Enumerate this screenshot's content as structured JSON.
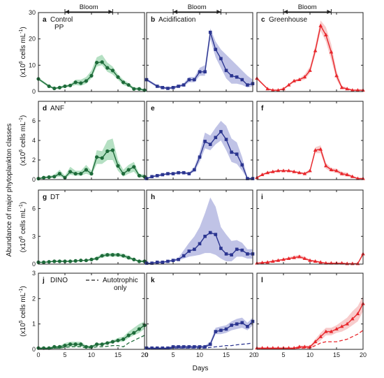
{
  "figure": {
    "shared_ylabel": "Abundance of major phytoplankton classes",
    "xlabel": "Days",
    "bloom_label": "Bloom",
    "autotrophic_label_line1": "Autotrophic",
    "autotrophic_label_line2": "only"
  },
  "colors": {
    "control": "#1e6b3a",
    "control_band": "#a8dbb8",
    "acid": "#2b3590",
    "acid_band": "#b5b8e2",
    "green": "#e8262b",
    "green_band": "#f7c3c3"
  },
  "chart_data": [
    {
      "letter": "a",
      "row": 0,
      "col": 0,
      "treatment": "control",
      "type": "line",
      "label": [
        "Control",
        "PP"
      ],
      "yunit_prefix": "(x10",
      "yunit_exp": "6",
      "yunit_suffix": " cells mL",
      "ylim": [
        0,
        30
      ],
      "yticks": [
        "0",
        "10",
        "20",
        "30"
      ],
      "x": [
        0,
        2,
        3,
        4,
        5,
        6,
        7,
        8,
        9,
        10,
        11,
        12,
        13,
        14,
        15,
        16,
        17,
        18,
        19,
        20
      ],
      "y": [
        4.8,
        2.0,
        1.2,
        1.5,
        2.0,
        2.3,
        3.5,
        3.2,
        4.0,
        6.0,
        11.0,
        11.2,
        9.0,
        8.0,
        5.5,
        3.5,
        2.5,
        1.0,
        1.0,
        0.5
      ],
      "lo": [
        4.3,
        1.5,
        0.9,
        1.1,
        1.5,
        1.8,
        2.5,
        2.2,
        3.0,
        5.0,
        9.5,
        10.0,
        7.5,
        6.5,
        4.5,
        2.5,
        1.8,
        0.6,
        0.5,
        0.2
      ],
      "hi": [
        5.3,
        2.5,
        1.5,
        1.9,
        2.5,
        2.8,
        4.5,
        4.5,
        5.5,
        8.0,
        13.0,
        14.0,
        11.0,
        9.5,
        6.5,
        4.5,
        3.2,
        1.5,
        1.5,
        0.8
      ],
      "marker": "circle"
    },
    {
      "letter": "b",
      "row": 0,
      "col": 1,
      "treatment": "acid",
      "type": "line",
      "label": [
        "Acidification"
      ],
      "ylim": [
        0,
        30
      ],
      "yticks": [
        "0",
        "10",
        "20",
        "30"
      ],
      "x": [
        0,
        2,
        3,
        4,
        5,
        6,
        7,
        8,
        9,
        10,
        11,
        12,
        13,
        14,
        15,
        16,
        17,
        18,
        19,
        20
      ],
      "y": [
        4.5,
        2.0,
        1.5,
        1.2,
        1.5,
        2.0,
        2.5,
        4.5,
        4.5,
        7.5,
        7.5,
        22.5,
        16.0,
        12.5,
        8.0,
        6.0,
        5.5,
        4.5,
        2.5,
        3.0
      ],
      "lo": [
        4.0,
        1.5,
        1.0,
        0.8,
        1.0,
        1.5,
        2.0,
        3.5,
        3.5,
        6.0,
        6.0,
        20.0,
        13.0,
        9.0,
        5.0,
        3.0,
        3.0,
        2.5,
        1.5,
        2.0
      ],
      "hi": [
        5.0,
        2.5,
        2.0,
        1.7,
        2.0,
        2.5,
        3.2,
        5.5,
        5.5,
        9.0,
        10.0,
        24.0,
        19.0,
        16.0,
        14.0,
        12.0,
        10.0,
        8.0,
        6.0,
        4.5
      ],
      "marker": "square"
    },
    {
      "letter": "c",
      "row": 0,
      "col": 2,
      "treatment": "green",
      "type": "line",
      "label": [
        "Greenhouse"
      ],
      "ylim": [
        0,
        30
      ],
      "yticks": [
        "0",
        "10",
        "20",
        "30"
      ],
      "x": [
        0,
        2,
        3,
        4,
        5,
        6,
        7,
        8,
        9,
        10,
        11,
        12,
        13,
        14,
        15,
        16,
        17,
        18,
        19,
        20
      ],
      "y": [
        5.0,
        1.0,
        0.5,
        0.5,
        1.0,
        2.5,
        4.0,
        4.5,
        5.5,
        8.0,
        15.5,
        25.0,
        21.5,
        15.0,
        6.0,
        1.5,
        1.0,
        0.5,
        0.5,
        0.5
      ],
      "lo": [
        4.5,
        0.7,
        0.3,
        0.3,
        0.7,
        2.0,
        3.5,
        4.0,
        4.5,
        7.0,
        14.0,
        23.0,
        19.0,
        12.0,
        4.5,
        1.0,
        0.6,
        0.3,
        0.3,
        0.3
      ],
      "hi": [
        5.5,
        1.3,
        0.8,
        0.8,
        1.3,
        3.0,
        4.5,
        5.0,
        6.5,
        9.5,
        17.5,
        27.0,
        24.5,
        18.0,
        8.0,
        2.2,
        1.5,
        0.8,
        0.8,
        0.8
      ],
      "marker": "triangle"
    },
    {
      "letter": "d",
      "row": 1,
      "col": 0,
      "treatment": "control",
      "type": "line",
      "label": [
        "ANF"
      ],
      "ylim": [
        0,
        8
      ],
      "yticks": [
        "0",
        "2",
        "4",
        "6"
      ],
      "x": [
        0,
        1,
        2,
        3,
        4,
        5,
        6,
        7,
        8,
        9,
        10,
        11,
        12,
        13,
        14,
        15,
        16,
        17,
        18,
        19,
        20
      ],
      "y": [
        0.1,
        0.2,
        0.25,
        0.3,
        0.6,
        0.2,
        0.8,
        0.6,
        0.6,
        1.0,
        0.6,
        2.3,
        2.2,
        2.9,
        3.0,
        1.4,
        0.6,
        1.0,
        1.3,
        0.4,
        0.3
      ],
      "lo": [
        0.05,
        0.1,
        0.15,
        0.2,
        0.3,
        0.1,
        0.5,
        0.4,
        0.4,
        0.6,
        0.4,
        1.6,
        1.6,
        2.0,
        2.0,
        0.9,
        0.3,
        0.6,
        0.8,
        0.2,
        0.2
      ],
      "hi": [
        0.15,
        0.3,
        0.35,
        0.5,
        1.0,
        0.4,
        1.3,
        0.9,
        0.9,
        1.5,
        0.9,
        3.0,
        2.9,
        4.0,
        4.2,
        2.0,
        1.0,
        1.5,
        1.8,
        0.6,
        0.5
      ],
      "marker": "circle"
    },
    {
      "letter": "e",
      "row": 1,
      "col": 1,
      "treatment": "acid",
      "type": "line",
      "label": [],
      "ylim": [
        0,
        8
      ],
      "yticks": [
        "0",
        "2",
        "4",
        "6"
      ],
      "x": [
        0,
        1,
        2,
        3,
        4,
        5,
        6,
        7,
        8,
        9,
        10,
        11,
        12,
        13,
        14,
        15,
        16,
        17,
        18,
        19,
        20
      ],
      "y": [
        0.1,
        0.3,
        0.4,
        0.5,
        0.6,
        0.6,
        0.7,
        0.7,
        0.6,
        1.0,
        2.3,
        3.9,
        3.6,
        4.3,
        4.9,
        4.1,
        2.8,
        2.6,
        1.5,
        0.1,
        0.1
      ],
      "lo": [
        0.05,
        0.2,
        0.3,
        0.4,
        0.5,
        0.5,
        0.6,
        0.6,
        0.5,
        0.8,
        1.8,
        3.2,
        3.0,
        3.6,
        4.0,
        3.0,
        1.8,
        1.6,
        0.9,
        0.05,
        0.05
      ],
      "hi": [
        0.15,
        0.4,
        0.5,
        0.6,
        0.7,
        0.7,
        0.8,
        0.8,
        0.7,
        1.3,
        2.8,
        4.8,
        4.5,
        5.3,
        6.0,
        5.5,
        4.2,
        3.8,
        2.3,
        0.2,
        0.2
      ],
      "marker": "square"
    },
    {
      "letter": "f",
      "row": 1,
      "col": 2,
      "treatment": "green",
      "type": "line",
      "label": [],
      "ylim": [
        0,
        8
      ],
      "yticks": [
        "0",
        "2",
        "4",
        "6"
      ],
      "x": [
        0,
        1,
        2,
        3,
        4,
        5,
        6,
        7,
        8,
        9,
        10,
        11,
        12,
        13,
        14,
        15,
        16,
        17,
        18,
        19,
        20
      ],
      "y": [
        0.2,
        0.5,
        0.7,
        0.8,
        0.9,
        0.9,
        0.9,
        0.8,
        0.7,
        0.6,
        0.9,
        3.0,
        3.1,
        1.4,
        1.0,
        0.9,
        0.6,
        0.5,
        0.3,
        0.1,
        0.1
      ],
      "lo": [
        0.1,
        0.4,
        0.6,
        0.7,
        0.8,
        0.8,
        0.8,
        0.7,
        0.6,
        0.5,
        0.7,
        2.7,
        2.7,
        1.1,
        0.8,
        0.7,
        0.4,
        0.3,
        0.2,
        0.05,
        0.05
      ],
      "hi": [
        0.3,
        0.6,
        0.8,
        0.9,
        1.0,
        1.0,
        1.0,
        0.9,
        0.8,
        0.7,
        1.1,
        3.3,
        3.5,
        1.7,
        1.2,
        1.1,
        0.8,
        0.7,
        0.4,
        0.2,
        0.2
      ],
      "marker": "triangle"
    },
    {
      "letter": "g",
      "row": 2,
      "col": 0,
      "treatment": "control",
      "type": "line",
      "label": [
        "DT"
      ],
      "ylim": [
        0,
        8
      ],
      "yticks": [
        "0",
        "3",
        "6"
      ],
      "x": [
        0,
        1,
        2,
        3,
        4,
        5,
        6,
        7,
        8,
        9,
        10,
        11,
        12,
        13,
        14,
        15,
        16,
        17,
        18,
        19,
        20
      ],
      "y": [
        0.2,
        0.2,
        0.25,
        0.3,
        0.3,
        0.3,
        0.3,
        0.35,
        0.4,
        0.4,
        0.5,
        0.6,
        0.9,
        1.0,
        1.0,
        1.0,
        0.9,
        0.7,
        0.5,
        0.3,
        0.3
      ],
      "lo": [
        0.15,
        0.15,
        0.2,
        0.25,
        0.25,
        0.25,
        0.25,
        0.3,
        0.35,
        0.35,
        0.4,
        0.5,
        0.7,
        0.8,
        0.8,
        0.8,
        0.7,
        0.5,
        0.4,
        0.2,
        0.2
      ],
      "hi": [
        0.25,
        0.25,
        0.3,
        0.35,
        0.35,
        0.35,
        0.35,
        0.4,
        0.45,
        0.45,
        0.6,
        0.8,
        1.1,
        1.2,
        1.2,
        1.2,
        1.1,
        0.9,
        0.6,
        0.4,
        0.4
      ],
      "marker": "circle"
    },
    {
      "letter": "h",
      "row": 2,
      "col": 1,
      "treatment": "acid",
      "type": "line",
      "label": [],
      "ylim": [
        0,
        8
      ],
      "yticks": [
        "0",
        "3",
        "6"
      ],
      "x": [
        0,
        1,
        2,
        3,
        4,
        5,
        6,
        7,
        8,
        9,
        10,
        11,
        12,
        13,
        14,
        15,
        16,
        17,
        18,
        19,
        20
      ],
      "y": [
        0.1,
        0.1,
        0.2,
        0.2,
        0.3,
        0.4,
        0.5,
        0.9,
        1.4,
        1.6,
        2.2,
        3.0,
        3.4,
        3.2,
        1.7,
        1.1,
        1.0,
        1.6,
        1.5,
        1.1,
        1.1
      ],
      "lo": [
        0.05,
        0.05,
        0.1,
        0.1,
        0.2,
        0.3,
        0.4,
        0.6,
        0.8,
        0.9,
        1.0,
        1.2,
        1.2,
        1.0,
        0.6,
        0.3,
        0.3,
        0.8,
        0.8,
        0.6,
        0.6
      ],
      "hi": [
        0.15,
        0.15,
        0.3,
        0.3,
        0.4,
        0.5,
        0.7,
        1.5,
        2.3,
        3.0,
        4.0,
        5.5,
        7.2,
        6.2,
        4.0,
        3.2,
        2.5,
        2.6,
        2.3,
        1.6,
        1.6
      ],
      "marker": "square"
    },
    {
      "letter": "i",
      "row": 2,
      "col": 2,
      "treatment": "green",
      "type": "line",
      "label": [],
      "ylim": [
        0,
        8
      ],
      "yticks": [
        "0",
        "3",
        "6"
      ],
      "x": [
        0,
        1,
        2,
        3,
        4,
        5,
        6,
        7,
        8,
        9,
        10,
        11,
        12,
        13,
        14,
        15,
        16,
        17,
        18,
        19,
        20
      ],
      "y": [
        0.1,
        0.15,
        0.2,
        0.3,
        0.4,
        0.5,
        0.6,
        0.7,
        0.8,
        0.6,
        0.4,
        0.3,
        0.2,
        0.1,
        0.1,
        0.1,
        0.1,
        0.05,
        0.05,
        0.05,
        1.1
      ],
      "lo": [
        0.05,
        0.1,
        0.15,
        0.2,
        0.3,
        0.4,
        0.5,
        0.55,
        0.6,
        0.45,
        0.3,
        0.2,
        0.15,
        0.05,
        0.05,
        0.05,
        0.05,
        0.02,
        0.02,
        0.02,
        0.9
      ],
      "hi": [
        0.15,
        0.2,
        0.3,
        0.4,
        0.5,
        0.6,
        0.75,
        0.9,
        1.0,
        0.8,
        0.5,
        0.4,
        0.3,
        0.15,
        0.15,
        0.15,
        0.15,
        0.1,
        0.1,
        0.1,
        1.3
      ],
      "marker": "triangle"
    },
    {
      "letter": "j",
      "row": 3,
      "col": 0,
      "treatment": "control",
      "type": "line",
      "label": [
        "DINO"
      ],
      "ylim": [
        0,
        3
      ],
      "yticks": [
        "0",
        "1",
        "2",
        "3"
      ],
      "x": [
        0,
        1,
        2,
        3,
        4,
        5,
        6,
        7,
        8,
        9,
        10,
        11,
        12,
        13,
        14,
        15,
        16,
        17,
        18,
        19,
        20
      ],
      "y": [
        0.05,
        0.05,
        0.05,
        0.1,
        0.1,
        0.15,
        0.2,
        0.2,
        0.2,
        0.1,
        0.1,
        0.2,
        0.2,
        0.25,
        0.3,
        0.35,
        0.4,
        0.55,
        0.65,
        0.8,
        0.95
      ],
      "lo": [
        0.03,
        0.03,
        0.03,
        0.07,
        0.07,
        0.1,
        0.1,
        0.1,
        0.1,
        0.05,
        0.05,
        0.15,
        0.15,
        0.2,
        0.25,
        0.3,
        0.3,
        0.45,
        0.55,
        0.65,
        0.8
      ],
      "hi": [
        0.07,
        0.07,
        0.07,
        0.13,
        0.13,
        0.25,
        0.3,
        0.3,
        0.3,
        0.15,
        0.15,
        0.25,
        0.25,
        0.3,
        0.35,
        0.45,
        0.5,
        0.7,
        0.85,
        1.0,
        1.1
      ],
      "auto": [
        0.03,
        0.03,
        0.03,
        0.05,
        0.05,
        0.08,
        0.1,
        0.1,
        0.1,
        0.06,
        0.06,
        0.1,
        0.1,
        0.12,
        0.15,
        0.15,
        0.1,
        0.25,
        0.35,
        0.45,
        0.55
      ],
      "marker": "circle"
    },
    {
      "letter": "k",
      "row": 3,
      "col": 1,
      "treatment": "acid",
      "type": "line",
      "label": [],
      "ylim": [
        0,
        3
      ],
      "yticks": [
        "0",
        "1",
        "2",
        "3"
      ],
      "x": [
        0,
        1,
        2,
        3,
        4,
        5,
        6,
        7,
        8,
        9,
        10,
        11,
        12,
        13,
        14,
        15,
        16,
        17,
        18,
        19,
        20
      ],
      "y": [
        0.05,
        0.05,
        0.05,
        0.05,
        0.05,
        0.1,
        0.1,
        0.1,
        0.1,
        0.1,
        0.1,
        0.1,
        0.2,
        0.7,
        0.75,
        0.8,
        0.95,
        1.0,
        1.05,
        0.9,
        1.1
      ],
      "lo": [
        0.03,
        0.03,
        0.03,
        0.03,
        0.03,
        0.05,
        0.05,
        0.05,
        0.05,
        0.05,
        0.05,
        0.05,
        0.15,
        0.6,
        0.6,
        0.65,
        0.75,
        0.8,
        0.85,
        0.75,
        0.95
      ],
      "hi": [
        0.07,
        0.07,
        0.07,
        0.07,
        0.07,
        0.15,
        0.15,
        0.15,
        0.15,
        0.15,
        0.15,
        0.15,
        0.3,
        0.85,
        0.9,
        0.95,
        1.1,
        1.2,
        1.25,
        1.05,
        1.25
      ],
      "auto": [
        0.03,
        0.03,
        0.03,
        0.03,
        0.03,
        0.05,
        0.05,
        0.05,
        0.05,
        0.05,
        0.05,
        0.05,
        0.08,
        0.1,
        0.12,
        0.15,
        0.15,
        0.18,
        0.2,
        0.22,
        0.25
      ],
      "marker": "square"
    },
    {
      "letter": "l",
      "row": 3,
      "col": 2,
      "treatment": "green",
      "type": "line",
      "label": [],
      "ylim": [
        0,
        3
      ],
      "yticks": [
        "0",
        "1",
        "2",
        "3"
      ],
      "x": [
        0,
        1,
        2,
        3,
        4,
        5,
        6,
        7,
        8,
        9,
        10,
        11,
        12,
        13,
        14,
        15,
        16,
        17,
        18,
        19,
        20
      ],
      "y": [
        0.05,
        0.05,
        0.05,
        0.05,
        0.05,
        0.05,
        0.05,
        0.05,
        0.1,
        0.1,
        0.1,
        0.3,
        0.5,
        0.7,
        0.7,
        0.8,
        0.9,
        1.0,
        1.2,
        1.4,
        1.8
      ],
      "lo": [
        0.03,
        0.03,
        0.03,
        0.03,
        0.03,
        0.03,
        0.03,
        0.03,
        0.05,
        0.05,
        0.05,
        0.2,
        0.35,
        0.55,
        0.55,
        0.65,
        0.7,
        0.8,
        0.95,
        1.1,
        1.5
      ],
      "hi": [
        0.07,
        0.07,
        0.07,
        0.07,
        0.07,
        0.07,
        0.07,
        0.07,
        0.15,
        0.15,
        0.15,
        0.4,
        0.65,
        0.85,
        0.85,
        0.95,
        1.1,
        1.25,
        1.5,
        1.7,
        2.1
      ],
      "auto": [
        0.03,
        0.03,
        0.03,
        0.03,
        0.03,
        0.03,
        0.03,
        0.03,
        0.05,
        0.05,
        0.05,
        0.15,
        0.25,
        0.3,
        0.3,
        0.3,
        0.35,
        0.4,
        0.5,
        0.6,
        0.75
      ],
      "marker": "triangle"
    }
  ],
  "bloom": [
    {
      "col": 0,
      "from": 5,
      "to": 14
    },
    {
      "col": 1,
      "from": 5,
      "to": 14
    },
    {
      "col": 2,
      "from": 5,
      "to": 14
    }
  ],
  "xticks": [
    "0",
    "5",
    "10",
    "15",
    "20"
  ]
}
